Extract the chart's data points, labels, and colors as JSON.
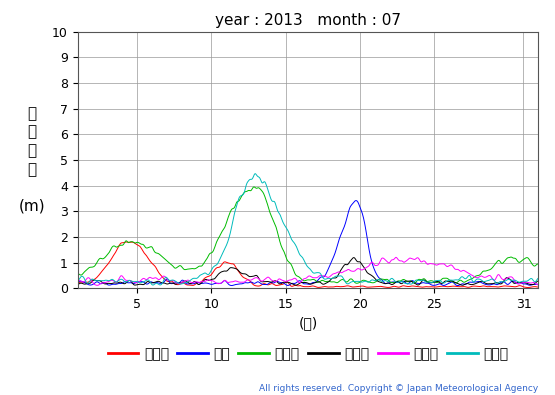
{
  "title": "year : 2013   month : 07",
  "xlabel": "(日)",
  "ylabel_chars": [
    "有",
    "義",
    "波",
    "高",
    "",
    "(m)"
  ],
  "ylim": [
    0,
    10
  ],
  "yticks": [
    0,
    1,
    2,
    3,
    4,
    5,
    6,
    7,
    8,
    9,
    10
  ],
  "xlim": [
    1,
    32
  ],
  "xticks": [
    5,
    10,
    15,
    20,
    25,
    31
  ],
  "copyright": "All rights reserved. Copyright © Japan Meteorological Agency",
  "series": [
    {
      "name": "上ノ国",
      "color": "#ff0000"
    },
    {
      "name": "唐桑",
      "color": "#0000ff"
    },
    {
      "name": "石廀崎",
      "color": "#00bb00"
    },
    {
      "name": "経ヶ尌",
      "color": "#000000"
    },
    {
      "name": "生月島",
      "color": "#ff00ff"
    },
    {
      "name": "屋久島",
      "color": "#00bbbb"
    }
  ],
  "background": "#ffffff",
  "grid_color": "#999999"
}
